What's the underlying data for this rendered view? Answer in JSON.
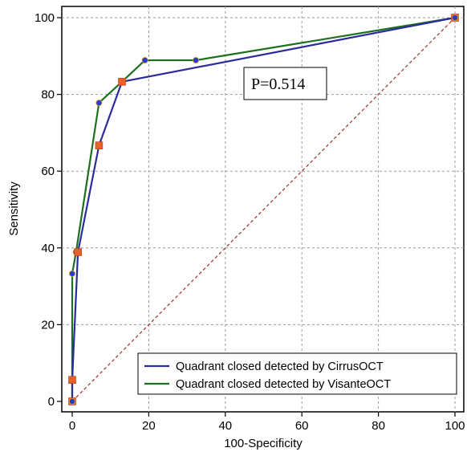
{
  "chart_data": {
    "type": "line",
    "title": "",
    "xlabel": "100-Specificity",
    "ylabel": "Sensitivity",
    "xlim": [
      0,
      100
    ],
    "ylim": [
      0,
      100
    ],
    "x_ticks": [
      0,
      20,
      40,
      60,
      80,
      100
    ],
    "y_ticks": [
      0,
      20,
      40,
      60,
      80,
      100
    ],
    "grid": true,
    "legend_position": "bottom-right",
    "annotation": "P=0.514",
    "reference_line": {
      "from": [
        0,
        0
      ],
      "to": [
        100,
        100
      ],
      "color": "#a0413a",
      "style": "dashed"
    },
    "series": [
      {
        "name": "Quadrant closed detected by CirrusOCT",
        "color": "#2b2ba0",
        "marker": "square",
        "marker_color": "#e8602a",
        "points": [
          {
            "x": 0,
            "y": 0
          },
          {
            "x": 0,
            "y": 5.6
          },
          {
            "x": 1.5,
            "y": 38.9
          },
          {
            "x": 7,
            "y": 66.7
          },
          {
            "x": 13,
            "y": 83.3
          },
          {
            "x": 100,
            "y": 100
          }
        ]
      },
      {
        "name": "Quadrant closed detected by VisanteOCT",
        "color": "#1f6e1f",
        "marker": "circle",
        "marker_color": "#2b3cc8",
        "points": [
          {
            "x": 0,
            "y": 0
          },
          {
            "x": 0,
            "y": 33.3
          },
          {
            "x": 1,
            "y": 38.9
          },
          {
            "x": 7,
            "y": 77.8
          },
          {
            "x": 13,
            "y": 83.3
          },
          {
            "x": 19,
            "y": 88.9
          },
          {
            "x": 32.3,
            "y": 88.9
          },
          {
            "x": 100,
            "y": 100
          }
        ]
      }
    ]
  }
}
